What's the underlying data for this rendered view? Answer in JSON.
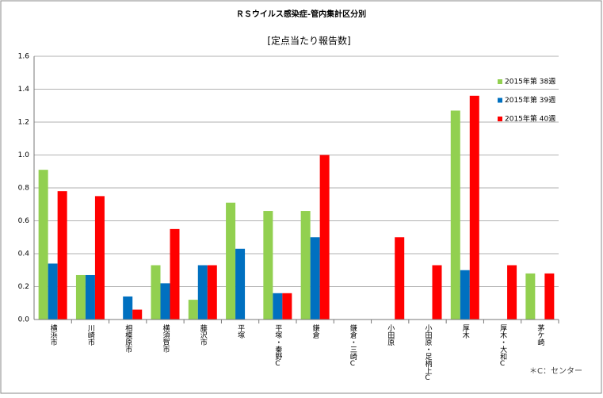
{
  "chart_data": {
    "type": "bar",
    "title": "ＲＳウイルス感染症-管内集計区分別",
    "subtitle": "[定点当たり報告数]",
    "note": "＊C：センター",
    "categories": [
      "横浜市",
      "川崎市",
      "相模原市",
      "横須賀市",
      "藤沢市",
      "平塚",
      "平塚・秦野C",
      "鎌倉",
      "鎌倉・三崎C",
      "小田原",
      "小田原・足柄上C",
      "厚木",
      "厚木・大和C",
      "茅ケ崎"
    ],
    "series": [
      {
        "name": "2015年第 38週",
        "color": "#92d050",
        "values": [
          0.91,
          0.27,
          0,
          0.33,
          0.12,
          0.71,
          0.66,
          0.66,
          0,
          0,
          0,
          1.27,
          0,
          0.28
        ]
      },
      {
        "name": "2015年第 39週",
        "color": "#0070c0",
        "values": [
          0.34,
          0.27,
          0.14,
          0.22,
          0.33,
          0.43,
          0.16,
          0.5,
          0,
          0,
          0,
          0.3,
          0,
          0
        ]
      },
      {
        "name": "2015年第 40週",
        "color": "#ff0000",
        "values": [
          0.78,
          0.75,
          0.06,
          0.55,
          0.33,
          0,
          0.16,
          1.0,
          0,
          0.5,
          0.33,
          1.36,
          0.33,
          0.28
        ]
      }
    ],
    "ylim": [
      0,
      1.6
    ],
    "yticks": [
      {
        "value": 0,
        "label": "0.0"
      },
      0.2,
      0.4,
      0.6,
      0.8,
      {
        "value": 1,
        "label": "1.0"
      },
      1.2,
      1.4,
      1.6
    ],
    "grid": true,
    "legend": "right"
  }
}
